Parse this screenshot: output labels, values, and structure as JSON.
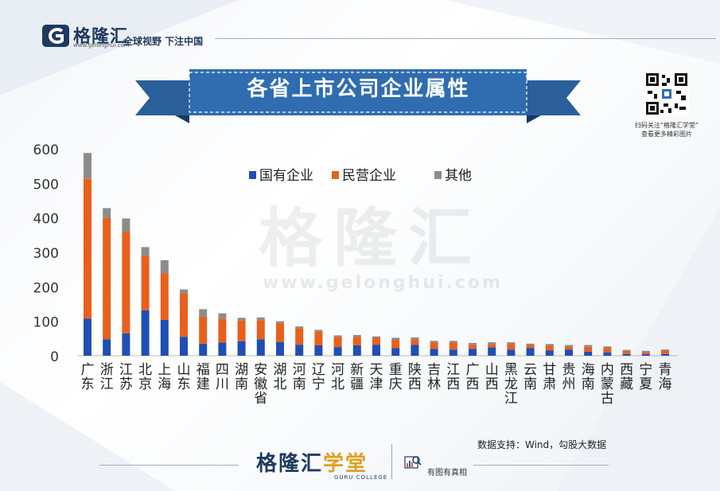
{
  "header": {
    "brand_name": "格隆汇",
    "brand_url": "www.gelonghui.com",
    "slogan": "全球视野 下注中国"
  },
  "qr": {
    "caption_line1": "扫码关注“格隆汇学堂”",
    "caption_line2": "查看更多精彩图片"
  },
  "watermark": {
    "text": "格隆汇",
    "url": "www.gelonghui.com"
  },
  "footer": {
    "source": "数据支持：Wind，勾股大数据",
    "logo_main": "格隆汇",
    "logo_accent": "学堂",
    "logo_sub": "GURU COLLEGE",
    "tag": "有图有真相"
  },
  "colors": {
    "state": "#1f4fb4",
    "private": "#e8601c",
    "other": "#8c8c8c",
    "ribbon": "#2f6db0",
    "brand": "#1f3a5f"
  },
  "chart_data": {
    "type": "bar",
    "stacked": true,
    "title": "各省上市公司企业属性",
    "ylim": [
      0,
      600
    ],
    "yticks": [
      0,
      100,
      200,
      300,
      400,
      500,
      600
    ],
    "grid": false,
    "legend_position": "top-center",
    "categories": [
      "广东",
      "浙江",
      "江苏",
      "北京",
      "上海",
      "山东",
      "福建",
      "四川",
      "湖南",
      "安徽省",
      "湖北",
      "河南",
      "辽宁",
      "河北",
      "新疆",
      "天津",
      "重庆",
      "陕西",
      "吉林",
      "江西",
      "广西",
      "山西",
      "黑龙江",
      "云南",
      "甘肃",
      "贵州",
      "海南",
      "内蒙古",
      "西藏",
      "宁夏",
      "青海"
    ],
    "series": [
      {
        "name": "国有企业",
        "values": [
          108,
          48,
          65,
          132,
          104,
          55,
          35,
          38,
          42,
          48,
          40,
          32,
          30,
          25,
          30,
          32,
          22,
          32,
          20,
          18,
          20,
          24,
          18,
          22,
          15,
          18,
          12,
          10,
          5,
          5,
          5
        ]
      },
      {
        "name": "民营企业",
        "values": [
          405,
          352,
          295,
          158,
          135,
          125,
          78,
          70,
          60,
          55,
          55,
          48,
          40,
          30,
          25,
          20,
          24,
          15,
          18,
          20,
          12,
          10,
          16,
          8,
          14,
          8,
          14,
          12,
          9,
          6,
          10
        ]
      },
      {
        "name": "其他",
        "values": [
          75,
          28,
          38,
          25,
          38,
          12,
          22,
          15,
          8,
          8,
          5,
          5,
          5,
          4,
          5,
          4,
          6,
          6,
          5,
          5,
          5,
          5,
          5,
          5,
          5,
          5,
          5,
          5,
          3,
          3,
          3
        ]
      }
    ]
  }
}
